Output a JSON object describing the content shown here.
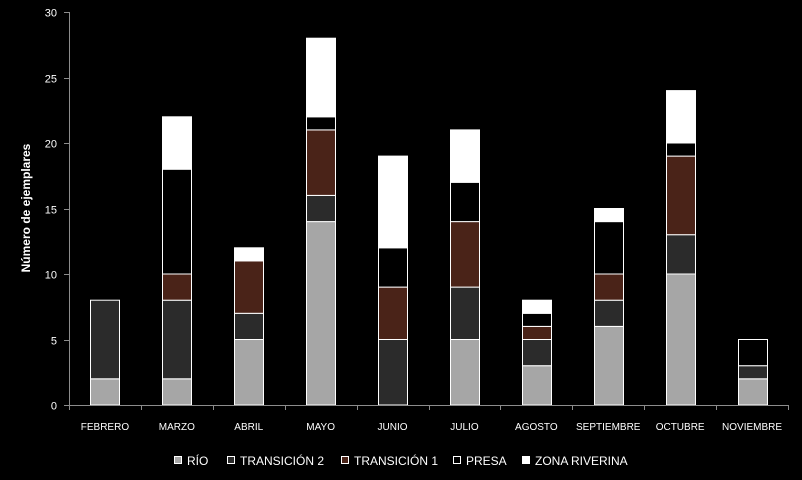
{
  "chart_data": {
    "type": "bar",
    "stacked": true,
    "title": "",
    "xlabel": "",
    "ylabel": "Número de ejemplares",
    "ylim": [
      0,
      30
    ],
    "yticks": [
      0,
      5,
      10,
      15,
      20,
      25,
      30
    ],
    "grid": false,
    "legend_position": "bottom",
    "categories": [
      "FEBRERO",
      "MARZO",
      "ABRIL",
      "MAYO",
      "JUNIO",
      "JULIO",
      "AGOSTO",
      "SEPTIEMBRE",
      "OCTUBRE",
      "NOVIEMBRE"
    ],
    "series": [
      {
        "name": "RÍO",
        "color": "#a6a6a6",
        "values": [
          2,
          2,
          5,
          14,
          0,
          5,
          3,
          6,
          10,
          2
        ]
      },
      {
        "name": "TRANSICIÓN 2",
        "color": "#2b2b2b",
        "values": [
          6,
          6,
          2,
          2,
          5,
          4,
          2,
          2,
          3,
          1
        ]
      },
      {
        "name": "TRANSICIÓN 1",
        "color": "#4a2318",
        "values": [
          0,
          2,
          4,
          5,
          4,
          5,
          1,
          2,
          6,
          0
        ]
      },
      {
        "name": "PRESA",
        "color": "#000000",
        "values": [
          0,
          8,
          0,
          1,
          3,
          3,
          1,
          4,
          1,
          2
        ]
      },
      {
        "name": "ZONA RIVERINA",
        "color": "#ffffff",
        "values": [
          0,
          4,
          1,
          6,
          7,
          4,
          1,
          1,
          4,
          0
        ]
      }
    ]
  }
}
